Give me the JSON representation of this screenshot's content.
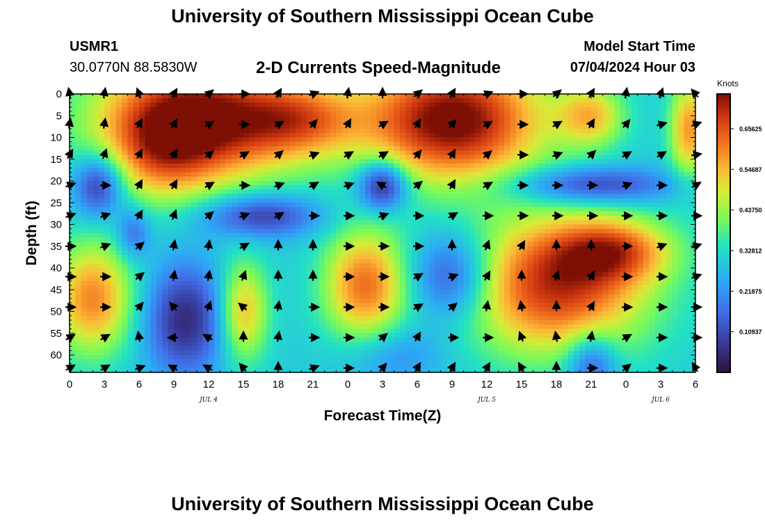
{
  "header": {
    "title": "University of Southern Mississippi Ocean Cube",
    "station_id": "USMR1",
    "coordinates": "30.0770N  88.5830W",
    "subtitle": "2-D Currents Speed-Magnitude",
    "model_start_label": "Model Start Time",
    "model_start_value": "07/04/2024 Hour 03"
  },
  "footer": {
    "title": "University of Southern Mississippi Ocean Cube"
  },
  "chart_data": {
    "type": "heatmap",
    "title": "2-D Currents Speed-Magnitude",
    "xlabel": "Forecast Time(Z)",
    "ylabel": "Depth (ft)",
    "x_range_hours": [
      0,
      54
    ],
    "y_range": [
      0,
      64
    ],
    "x_ticks": [
      {
        "h": 0,
        "label": "0"
      },
      {
        "h": 3,
        "label": "3"
      },
      {
        "h": 6,
        "label": "6"
      },
      {
        "h": 9,
        "label": "9"
      },
      {
        "h": 12,
        "label": "12"
      },
      {
        "h": 15,
        "label": "15"
      },
      {
        "h": 18,
        "label": "18"
      },
      {
        "h": 21,
        "label": "21"
      },
      {
        "h": 24,
        "label": "0"
      },
      {
        "h": 27,
        "label": "3"
      },
      {
        "h": 30,
        "label": "6"
      },
      {
        "h": 33,
        "label": "9"
      },
      {
        "h": 36,
        "label": "12"
      },
      {
        "h": 39,
        "label": "15"
      },
      {
        "h": 42,
        "label": "18"
      },
      {
        "h": 45,
        "label": "21"
      },
      {
        "h": 48,
        "label": "0"
      },
      {
        "h": 51,
        "label": "3"
      },
      {
        "h": 54,
        "label": "6"
      }
    ],
    "day_labels": [
      {
        "h": 12,
        "label": "JUL 4"
      },
      {
        "h": 36,
        "label": "JUL 5"
      },
      {
        "h": 51,
        "label": "JUL 6"
      }
    ],
    "y_ticks": [
      0,
      5,
      10,
      15,
      20,
      25,
      30,
      35,
      40,
      45,
      50,
      55,
      60
    ],
    "colorbar": {
      "title": "Knots",
      "ticks": [
        "0.10937",
        "0.21875",
        "0.32812",
        "0.43750",
        "0.54687",
        "0.65625"
      ],
      "tick_values": [
        0.10937,
        0.21875,
        0.32812,
        0.4375,
        0.54687,
        0.65625
      ],
      "range": [
        0,
        0.75
      ]
    },
    "speed_field": {
      "base": 0.3,
      "blobs": [
        {
          "t": 11,
          "d": 6,
          "st": 6,
          "sd": 10,
          "a": 0.48
        },
        {
          "t": 8,
          "d": 14,
          "st": 3,
          "sd": 8,
          "a": 0.15
        },
        {
          "t": 20,
          "d": 6,
          "st": 3.5,
          "sd": 6,
          "a": 0.22
        },
        {
          "t": 33,
          "d": 6,
          "st": 5.5,
          "sd": 10,
          "a": 0.48
        },
        {
          "t": 45,
          "d": 5,
          "st": 2,
          "sd": 5,
          "a": 0.22
        },
        {
          "t": 53.5,
          "d": 8,
          "st": 1.2,
          "sd": 8,
          "a": 0.28
        },
        {
          "t": 2,
          "d": 47,
          "st": 2.5,
          "sd": 9,
          "a": 0.3
        },
        {
          "t": 15,
          "d": 50,
          "st": 1.5,
          "sd": 8,
          "a": 0.25
        },
        {
          "t": 25.5,
          "d": 44,
          "st": 2.5,
          "sd": 9,
          "a": 0.32
        },
        {
          "t": 42,
          "d": 44,
          "st": 5.5,
          "sd": 11,
          "a": 0.4
        },
        {
          "t": 47,
          "d": 36,
          "st": 3.5,
          "sd": 5,
          "a": 0.25
        },
        {
          "t": 2.5,
          "d": 21,
          "st": 1.5,
          "sd": 5,
          "a": -0.25
        },
        {
          "t": 16.5,
          "d": 28,
          "st": 3.5,
          "sd": 3.5,
          "a": -0.22
        },
        {
          "t": 27,
          "d": 21,
          "st": 1.5,
          "sd": 4,
          "a": -0.3
        },
        {
          "t": 45,
          "d": 21,
          "st": 5,
          "sd": 3,
          "a": -0.22
        },
        {
          "t": 10,
          "d": 52,
          "st": 2.5,
          "sd": 9,
          "a": -0.25
        },
        {
          "t": 33,
          "d": 42,
          "st": 2.5,
          "sd": 7,
          "a": -0.22
        },
        {
          "t": 5.5,
          "d": 32,
          "st": 1,
          "sd": 4,
          "a": -0.15
        },
        {
          "t": 45,
          "d": 62,
          "st": 1.5,
          "sd": 5,
          "a": -0.2
        },
        {
          "t": 28,
          "d": 60,
          "st": 3,
          "sd": 5,
          "a": -0.1
        }
      ]
    },
    "arrows": {
      "times_h": [
        0,
        3,
        6,
        9,
        12,
        15,
        18,
        21,
        24,
        27,
        30,
        33,
        36,
        39,
        42,
        45,
        48,
        51,
        54
      ],
      "depths_ft": [
        0,
        7,
        14,
        21,
        28,
        35,
        42,
        49,
        56,
        63
      ],
      "angles_deg": [
        [
          100,
          80,
          110,
          60,
          40,
          0,
          60,
          20,
          80,
          90,
          40,
          60,
          20,
          0,
          40,
          60,
          80,
          70,
          130
        ],
        [
          80,
          80,
          60,
          60,
          30,
          0,
          30,
          50,
          60,
          30,
          60,
          50,
          30,
          0,
          30,
          60,
          50,
          15,
          20
        ],
        [
          60,
          70,
          60,
          60,
          40,
          30,
          40,
          20,
          30,
          30,
          50,
          60,
          40,
          0,
          20,
          45,
          30,
          30,
          10
        ],
        [
          20,
          0,
          60,
          60,
          30,
          0,
          20,
          30,
          20,
          150,
          40,
          60,
          30,
          0,
          0,
          0,
          20,
          0,
          30
        ],
        [
          20,
          20,
          60,
          70,
          40,
          20,
          30,
          0,
          0,
          20,
          0,
          30,
          0,
          0,
          0,
          0,
          0,
          0,
          0
        ],
        [
          0,
          20,
          40,
          80,
          80,
          30,
          90,
          90,
          0,
          0,
          0,
          90,
          70,
          60,
          90,
          90,
          0,
          20,
          20
        ],
        [
          0,
          0,
          40,
          80,
          80,
          70,
          90,
          90,
          0,
          0,
          30,
          20,
          60,
          90,
          70,
          60,
          0,
          0,
          20
        ],
        [
          0,
          0,
          50,
          130,
          70,
          140,
          80,
          0,
          0,
          0,
          30,
          40,
          80,
          100,
          90,
          60,
          0,
          0,
          0
        ],
        [
          30,
          30,
          100,
          180,
          150,
          90,
          80,
          0,
          0,
          40,
          60,
          0,
          0,
          110,
          100,
          80,
          30,
          0,
          0
        ],
        [
          30,
          30,
          20,
          150,
          150,
          130,
          90,
          20,
          0,
          50,
          60,
          60,
          60,
          120,
          90,
          0,
          40,
          0,
          120
        ]
      ]
    }
  }
}
